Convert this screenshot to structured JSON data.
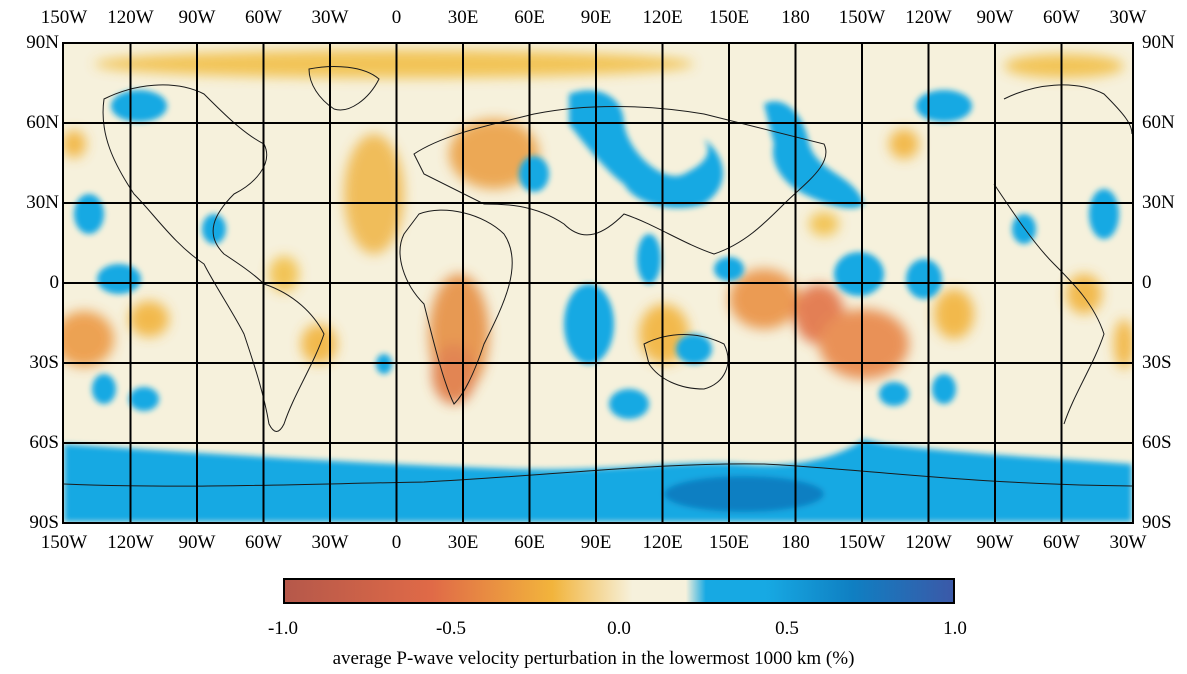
{
  "lon_labels_top": [
    "150W",
    "120W",
    "90W",
    "60W",
    "30W",
    "0",
    "30E",
    "60E",
    "90E",
    "120E",
    "150E",
    "180",
    "150W",
    "120W",
    "90W",
    "60W",
    "30W"
  ],
  "lon_labels_bottom": [
    "150W",
    "120W",
    "90W",
    "60W",
    "30W",
    "0",
    "30E",
    "60E",
    "90E",
    "120E",
    "150E",
    "180",
    "150W",
    "120W",
    "90W",
    "60W",
    "30W"
  ],
  "lat_labels_left": [
    "90N",
    "60N",
    "30N",
    "0",
    "30S",
    "60S",
    "90S"
  ],
  "lat_labels_right": [
    "90N",
    "60N",
    "30N",
    "0",
    "30S",
    "60S",
    "90S"
  ],
  "colorbar": {
    "min": -1.0,
    "max": 1.0,
    "ticks": [
      "-1.0",
      "-0.5",
      "0.0",
      "0.5",
      "1.0"
    ],
    "title": "average P-wave velocity perturbation in the lowermost 1000 km (%)",
    "colors": {
      "neg_strong": "#b5584a",
      "neg_mid": "#e06a47",
      "neg_weak": "#f2b43c",
      "neutral": "#f6f1dc",
      "pos_weak": "#17a9e3",
      "pos_mid": "#0f7fc2",
      "pos_strong": "#3b59a8"
    }
  }
}
